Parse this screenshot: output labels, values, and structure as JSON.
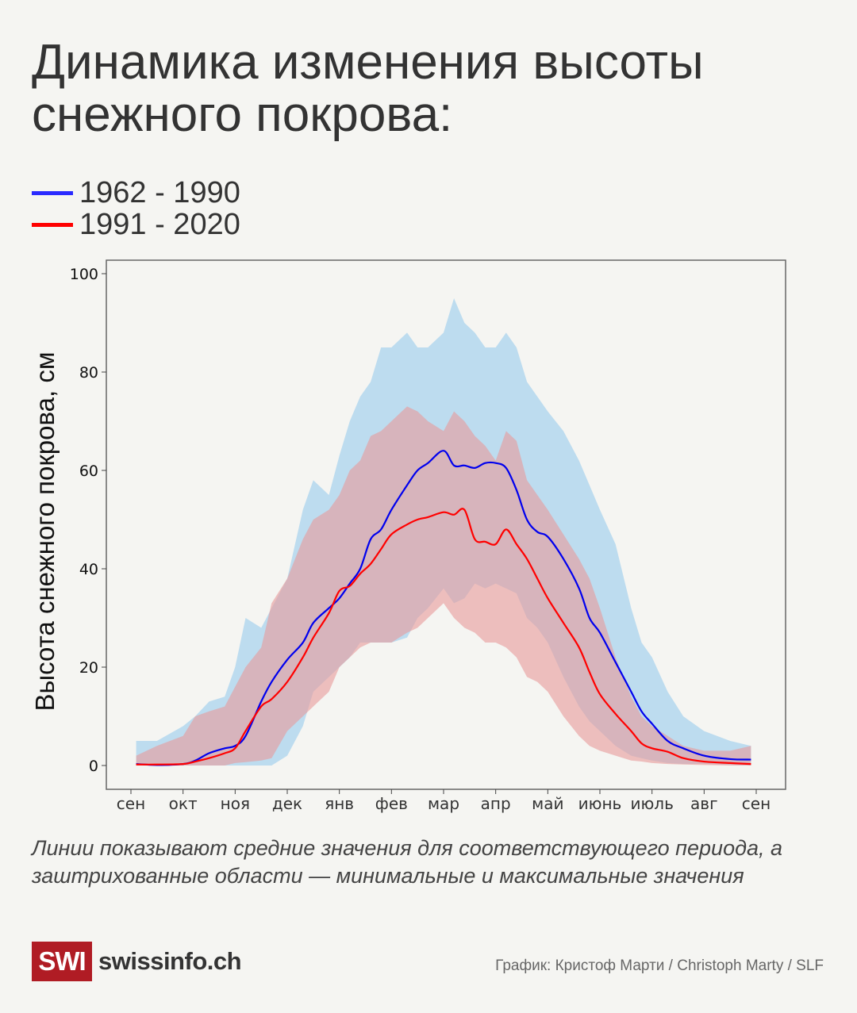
{
  "title": "Динамика изменения высоты снежного покрова:",
  "legend": [
    {
      "label": "1962 - 1990",
      "color": "#2a2aff"
    },
    {
      "label": "1991 - 2020",
      "color": "#ff0000"
    }
  ],
  "caption": "Линии показывают средние значения для соответствующего периода, а заштрихованные области — минимальные и максимальные значения",
  "footer": {
    "logo_text": "SWI",
    "site": "swissinfo.ch",
    "credit": "График: Кристоф Марти / Christoph Marty / SLF",
    "brand_color": "#b01c24"
  },
  "chart_data": {
    "type": "area",
    "title": "",
    "xlabel": "",
    "ylabel": "Высота снежного покрова, см",
    "ylim": [
      -5,
      102
    ],
    "yticks": [
      0,
      20,
      40,
      60,
      80,
      100
    ],
    "xticks": [
      "сен",
      "окт",
      "ноя",
      "дек",
      "янв",
      "фев",
      "мар",
      "апр",
      "май",
      "июнь",
      "июль",
      "авг",
      "сен"
    ],
    "grid": false,
    "legend_placement": "above chart, left",
    "x": [
      "09-04",
      "09-16",
      "10-01",
      "10-08",
      "10-16",
      "10-25",
      "11-01",
      "11-07",
      "11-16",
      "11-22",
      "12-01",
      "12-10",
      "12-16",
      "12-25",
      "01-01",
      "01-07",
      "01-13",
      "01-19",
      "01-25",
      "02-01",
      "02-10",
      "02-16",
      "02-22",
      "03-01",
      "03-07",
      "03-13",
      "03-19",
      "03-25",
      "04-01",
      "04-07",
      "04-13",
      "04-19",
      "04-25",
      "05-01",
      "05-10",
      "05-19",
      "05-25",
      "06-01",
      "06-10",
      "06-19",
      "06-25",
      "07-01",
      "07-10",
      "07-19",
      "08-01",
      "08-16",
      "08-28"
    ],
    "series": [
      {
        "name": "1962 - 1990",
        "line_color": "#0000ee",
        "fill_color": "#a9d3ee",
        "mean": [
          0.3,
          0.1,
          0.3,
          1,
          2.5,
          3.5,
          4,
          6,
          13,
          17,
          21.5,
          25,
          29,
          32,
          34,
          37,
          40,
          46,
          48,
          52,
          57,
          60,
          61.5,
          64,
          61,
          61,
          60.5,
          61.5,
          61.5,
          60.5,
          56,
          50,
          47.5,
          46.5,
          42,
          36,
          30,
          27,
          21,
          15,
          11,
          8.5,
          5,
          3.5,
          2,
          1.3,
          1.2
        ],
        "max": [
          5,
          5,
          8,
          10,
          13,
          14,
          20,
          30,
          28,
          32,
          38,
          52,
          58,
          55,
          63,
          70,
          75,
          78,
          85,
          85,
          88,
          85,
          85,
          88,
          95,
          90,
          88,
          85,
          85,
          88,
          85,
          78,
          75,
          72,
          68,
          62,
          57,
          52,
          45,
          32,
          25,
          22,
          15,
          10,
          7,
          5,
          4
        ],
        "min": [
          0,
          0,
          0,
          0,
          0,
          0,
          0,
          0,
          0,
          0,
          2,
          8,
          15,
          18,
          20,
          22,
          25,
          25,
          25,
          25,
          26,
          30,
          32,
          36,
          33,
          34,
          37,
          36,
          37,
          36,
          35,
          30,
          28,
          25,
          18,
          12,
          9,
          7,
          4,
          2,
          1.5,
          1,
          0.5,
          0.3,
          0.3,
          0.1,
          0
        ]
      },
      {
        "name": "1991 - 2020",
        "line_color": "#ff0000",
        "fill_color": "#e89a9a",
        "mean": [
          0.2,
          0.2,
          0.3,
          0.8,
          1.5,
          2.5,
          3.5,
          7,
          12,
          13.5,
          17,
          22,
          26,
          31,
          35.5,
          36.5,
          39,
          41,
          44,
          47,
          49,
          50,
          50.5,
          51.5,
          51,
          52,
          46,
          45.5,
          45,
          48,
          45,
          42,
          38,
          34,
          29,
          24,
          19,
          14.5,
          10.5,
          7,
          4.5,
          3.5,
          2.8,
          1.5,
          0.8,
          0.5,
          0.3
        ],
        "max": [
          2,
          4,
          6,
          10,
          11,
          12,
          16,
          20,
          24,
          33,
          38,
          46,
          50,
          52,
          55,
          60,
          62,
          67,
          68,
          70,
          73,
          72,
          70,
          68,
          72,
          70,
          67,
          65,
          62,
          68,
          66,
          58,
          55,
          52,
          47,
          42,
          38,
          32,
          22,
          14,
          10,
          8,
          6,
          4,
          3,
          3,
          4
        ],
        "min": [
          0,
          0,
          0,
          0,
          0,
          0,
          0.5,
          0.7,
          1,
          1.5,
          7,
          10,
          12,
          15,
          20,
          22,
          24,
          25,
          25,
          25,
          27,
          28,
          30,
          33,
          30,
          28,
          27,
          25,
          25,
          24,
          22,
          18,
          17,
          15,
          10,
          6,
          4,
          3,
          2,
          1,
          0.8,
          0.5,
          0.3,
          0.2,
          0.1,
          0,
          0
        ]
      }
    ]
  }
}
